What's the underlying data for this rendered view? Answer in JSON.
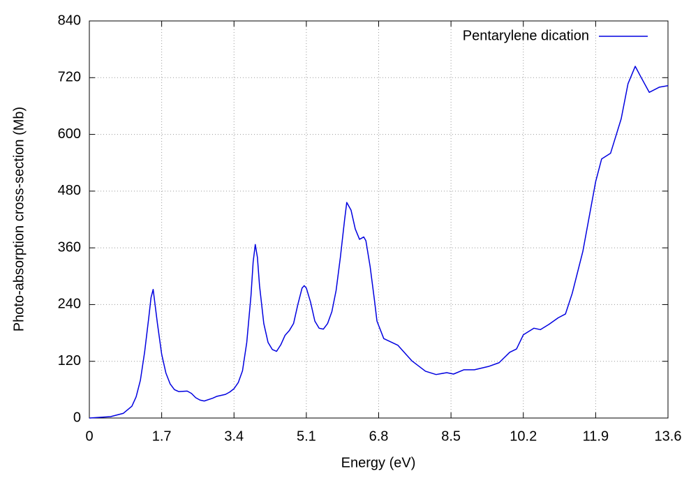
{
  "chart_data": {
    "type": "line",
    "xlabel": "Energy (eV)",
    "ylabel": "Photo-absorption cross-section (Mb)",
    "xlim": [
      0,
      13.6
    ],
    "xticks": [
      0,
      1.7,
      3.4,
      5.1,
      6.8,
      8.5,
      10.2,
      11.9,
      13.6
    ],
    "ylim": [
      0,
      840
    ],
    "yticks": [
      0,
      120,
      240,
      360,
      480,
      600,
      720,
      840
    ],
    "grid": true,
    "legend": "top-right",
    "x": [
      0,
      0.5,
      0.8,
      1.0,
      1.1,
      1.2,
      1.3,
      1.4,
      1.45,
      1.5,
      1.6,
      1.7,
      1.8,
      1.9,
      2.0,
      2.1,
      2.3,
      2.4,
      2.5,
      2.6,
      2.7,
      2.9,
      3.0,
      3.2,
      3.3,
      3.4,
      3.5,
      3.6,
      3.7,
      3.8,
      3.85,
      3.9,
      3.95,
      4.0,
      4.1,
      4.2,
      4.3,
      4.4,
      4.5,
      4.6,
      4.7,
      4.8,
      4.9,
      5.0,
      5.05,
      5.1,
      5.2,
      5.3,
      5.4,
      5.5,
      5.6,
      5.7,
      5.8,
      5.9,
      6.0,
      6.05,
      6.15,
      6.25,
      6.35,
      6.45,
      6.5,
      6.6,
      6.7,
      6.76,
      6.92,
      7.25,
      7.58,
      7.9,
      8.15,
      8.4,
      8.56,
      8.8,
      9.05,
      9.38,
      9.63,
      9.88,
      10.04,
      10.2,
      10.45,
      10.6,
      10.8,
      11.02,
      11.19,
      11.35,
      11.6,
      11.9,
      12.04,
      12.25,
      12.5,
      12.66,
      12.83,
      12.96,
      13.16,
      13.4,
      13.6
    ],
    "series": [
      {
        "name": "Pentarylene dication",
        "color": "#0000e0",
        "values": [
          0,
          3,
          10,
          25,
          45,
          80,
          140,
          215,
          255,
          272,
          200,
          135,
          95,
          72,
          60,
          56,
          57,
          52,
          43,
          38,
          36,
          42,
          46,
          50,
          55,
          62,
          75,
          100,
          160,
          260,
          330,
          367,
          340,
          280,
          200,
          160,
          145,
          141,
          155,
          175,
          185,
          200,
          240,
          275,
          280,
          275,
          245,
          205,
          190,
          188,
          200,
          225,
          270,
          340,
          420,
          456,
          440,
          400,
          378,
          383,
          375,
          320,
          250,
          205,
          168,
          154,
          121,
          99,
          92,
          96,
          93,
          102,
          102,
          109,
          117,
          139,
          146,
          176,
          190,
          187,
          198,
          212,
          220,
          264,
          353,
          500,
          548,
          560,
          633,
          707,
          744,
          722,
          689,
          700,
          703
        ]
      }
    ]
  }
}
